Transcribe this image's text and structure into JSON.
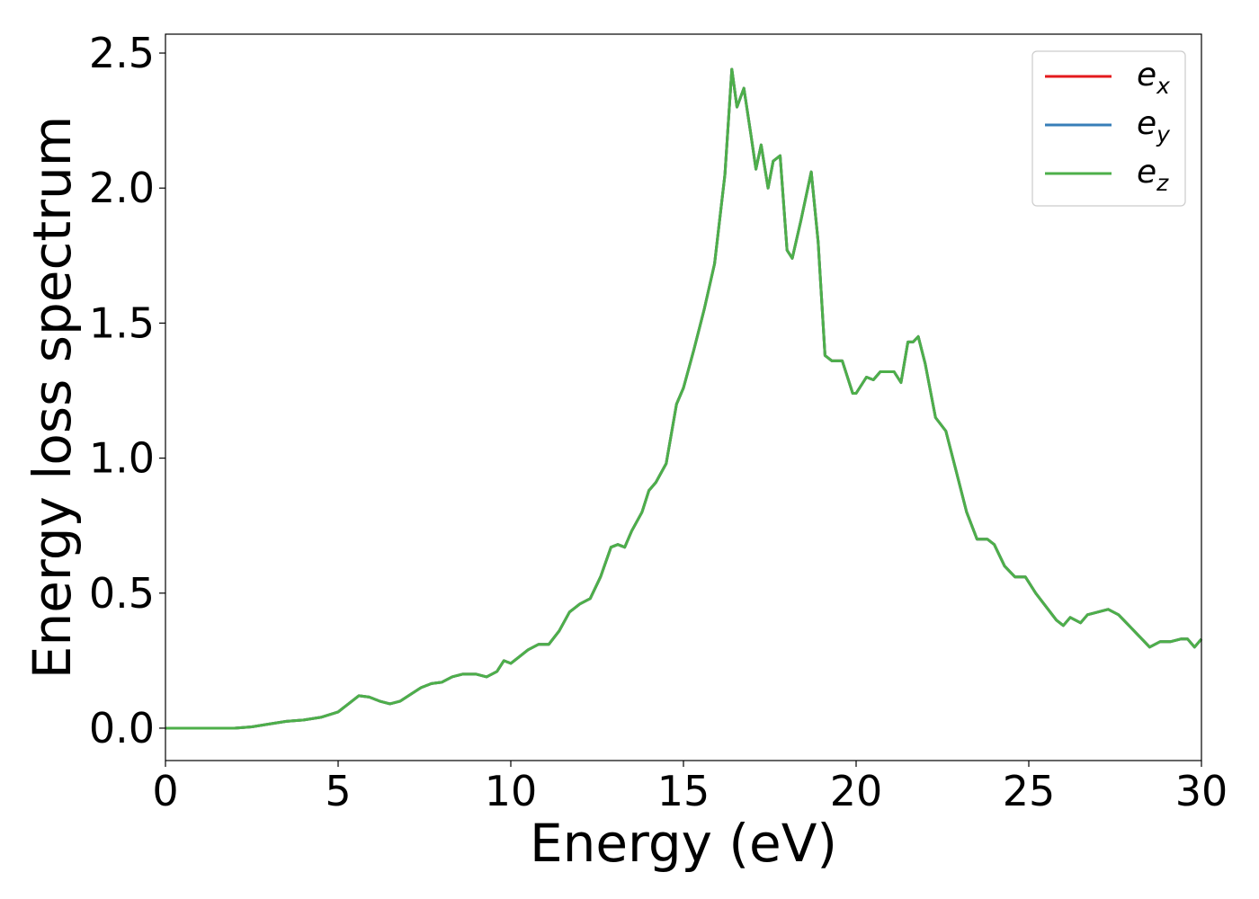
{
  "chart_data": {
    "type": "line",
    "title": "",
    "xlabel": "Energy (eV)",
    "ylabel": "Energy loss spectrum",
    "xlim": [
      0,
      30
    ],
    "ylim": [
      -0.12,
      2.57
    ],
    "x_ticks": [
      "0",
      "5",
      "10",
      "15",
      "20",
      "25",
      "30"
    ],
    "y_ticks": [
      "0.0",
      "0.5",
      "1.0",
      "1.5",
      "2.0",
      "2.5"
    ],
    "grid": false,
    "legend_position": "top-right",
    "series": [
      {
        "name": "e",
        "subscript": "x",
        "color": "#e41a1c"
      },
      {
        "name": "e",
        "subscript": "y",
        "color": "#377eb8"
      },
      {
        "name": "e",
        "subscript": "z",
        "color": "#4daf4a"
      }
    ],
    "note": "All three series share identical values; e_z is drawn on top.",
    "x": [
      0,
      1,
      2,
      2.5,
      3,
      3.5,
      4,
      4.5,
      5,
      5.3,
      5.6,
      5.9,
      6.2,
      6.5,
      6.8,
      7.1,
      7.4,
      7.7,
      8.0,
      8.3,
      8.6,
      9.0,
      9.3,
      9.6,
      9.8,
      10.0,
      10.2,
      10.5,
      10.8,
      11.1,
      11.4,
      11.7,
      12.0,
      12.3,
      12.6,
      12.9,
      13.1,
      13.3,
      13.5,
      13.8,
      14.0,
      14.2,
      14.5,
      14.8,
      15.0,
      15.3,
      15.6,
      15.9,
      16.2,
      16.4,
      16.55,
      16.75,
      16.95,
      17.1,
      17.25,
      17.45,
      17.6,
      17.8,
      18.0,
      18.15,
      18.4,
      18.7,
      18.9,
      19.1,
      19.3,
      19.6,
      19.9,
      20.0,
      20.3,
      20.5,
      20.7,
      20.9,
      21.1,
      21.3,
      21.5,
      21.65,
      21.8,
      22.0,
      22.3,
      22.6,
      22.9,
      23.2,
      23.5,
      23.8,
      24.0,
      24.3,
      24.6,
      24.9,
      25.2,
      25.5,
      25.8,
      26.0,
      26.2,
      26.5,
      26.7,
      27.0,
      27.3,
      27.6,
      27.9,
      28.2,
      28.5,
      28.8,
      29.1,
      29.4,
      29.6,
      29.8,
      30.0
    ],
    "y": [
      0.0,
      0.0,
      0.0,
      0.005,
      0.015,
      0.025,
      0.03,
      0.04,
      0.06,
      0.09,
      0.12,
      0.115,
      0.1,
      0.09,
      0.1,
      0.125,
      0.15,
      0.165,
      0.17,
      0.19,
      0.2,
      0.2,
      0.19,
      0.21,
      0.25,
      0.24,
      0.26,
      0.29,
      0.31,
      0.31,
      0.36,
      0.43,
      0.46,
      0.48,
      0.56,
      0.67,
      0.68,
      0.67,
      0.73,
      0.8,
      0.88,
      0.91,
      0.98,
      1.2,
      1.26,
      1.4,
      1.55,
      1.72,
      2.05,
      2.44,
      2.3,
      2.37,
      2.2,
      2.07,
      2.16,
      2.0,
      2.1,
      2.12,
      1.77,
      1.74,
      1.88,
      2.06,
      1.8,
      1.38,
      1.36,
      1.36,
      1.24,
      1.24,
      1.3,
      1.29,
      1.32,
      1.32,
      1.32,
      1.28,
      1.43,
      1.43,
      1.45,
      1.35,
      1.15,
      1.1,
      0.95,
      0.8,
      0.7,
      0.7,
      0.68,
      0.6,
      0.56,
      0.56,
      0.5,
      0.45,
      0.4,
      0.38,
      0.41,
      0.39,
      0.42,
      0.43,
      0.44,
      0.42,
      0.38,
      0.34,
      0.3,
      0.32,
      0.32,
      0.33,
      0.33,
      0.3,
      0.33
    ]
  }
}
